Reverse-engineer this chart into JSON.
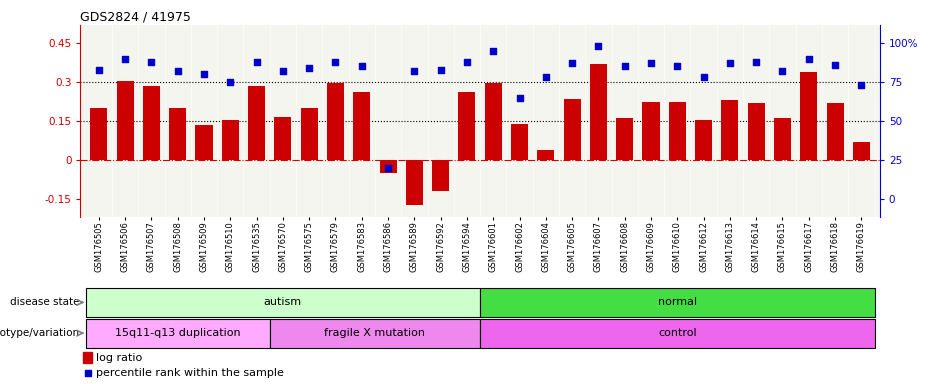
{
  "title": "GDS2824 / 41975",
  "samples": [
    "GSM176505",
    "GSM176506",
    "GSM176507",
    "GSM176508",
    "GSM176509",
    "GSM176510",
    "GSM176535",
    "GSM176570",
    "GSM176575",
    "GSM176579",
    "GSM176583",
    "GSM176586",
    "GSM176589",
    "GSM176592",
    "GSM176594",
    "GSM176601",
    "GSM176602",
    "GSM176604",
    "GSM176605",
    "GSM176607",
    "GSM176608",
    "GSM176609",
    "GSM176610",
    "GSM176612",
    "GSM176613",
    "GSM176614",
    "GSM176615",
    "GSM176617",
    "GSM176618",
    "GSM176619"
  ],
  "log_ratio": [
    0.2,
    0.305,
    0.285,
    0.2,
    0.135,
    0.155,
    0.285,
    0.165,
    0.2,
    0.295,
    0.26,
    -0.05,
    -0.175,
    -0.12,
    0.26,
    0.295,
    0.14,
    0.04,
    0.235,
    0.37,
    0.16,
    0.225,
    0.225,
    0.155,
    0.23,
    0.22,
    0.16,
    0.34,
    0.22,
    0.07
  ],
  "percentile": [
    83,
    90,
    88,
    82,
    80,
    75,
    88,
    82,
    84,
    88,
    85,
    20,
    82,
    83,
    88,
    95,
    65,
    78,
    87,
    98,
    85,
    87,
    85,
    78,
    87,
    88,
    82,
    90,
    86,
    73
  ],
  "bar_color": "#cc0000",
  "dot_color": "#0000cc",
  "disease_state_groups": [
    {
      "label": "autism",
      "start": 0,
      "end": 14,
      "color": "#ccffcc"
    },
    {
      "label": "normal",
      "start": 15,
      "end": 29,
      "color": "#44dd44"
    }
  ],
  "genotype_groups": [
    {
      "label": "15q11-q13 duplication",
      "start": 0,
      "end": 6,
      "color": "#ffaaff"
    },
    {
      "label": "fragile X mutation",
      "start": 7,
      "end": 14,
      "color": "#ee88ee"
    },
    {
      "label": "control",
      "start": 15,
      "end": 29,
      "color": "#ee66ee"
    }
  ],
  "bg_color": "#f5f5f0",
  "bar_width": 0.65,
  "ylim_left": [
    -0.22,
    0.52
  ],
  "ylim_right": [
    -30.6,
    122.4
  ],
  "yticks_left": [
    -0.15,
    0.0,
    0.15,
    0.3,
    0.45
  ],
  "yticks_right": [
    0,
    25,
    50,
    75,
    100
  ]
}
